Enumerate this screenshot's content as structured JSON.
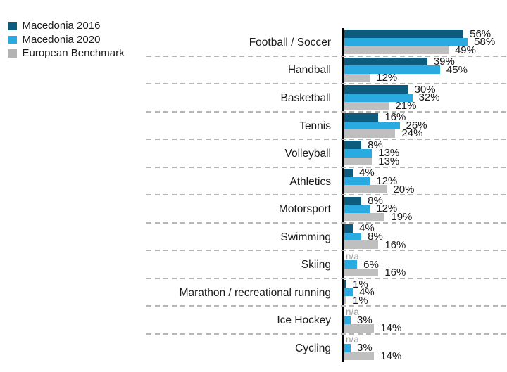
{
  "legend": {
    "items": [
      {
        "label": "Macedonia 2016",
        "color": "#0D5C7E"
      },
      {
        "label": "Macedonia 2020",
        "color": "#29ABE2"
      },
      {
        "label": "European Benchmark",
        "color": "#B3B3B3"
      }
    ]
  },
  "chart_data": {
    "type": "bar",
    "orientation": "horizontal",
    "title": "",
    "value_unit": "%",
    "xlim": [
      0,
      60
    ],
    "legend_position": "top-left",
    "data_labels": "outside-end",
    "gridlines": "dashed-row-separators",
    "null_label": "n/a",
    "categories": [
      "Football / Soccer",
      "Handball",
      "Basketball",
      "Tennis",
      "Volleyball",
      "Athletics",
      "Motorsport",
      "Swimming",
      "Skiing",
      "Marathon / recreational running",
      "Ice Hockey",
      "Cycling"
    ],
    "series": [
      {
        "name": "Macedonia 2016",
        "color": "#0D5C7E",
        "values": [
          56,
          39,
          30,
          16,
          8,
          4,
          8,
          4,
          null,
          1,
          null,
          null
        ]
      },
      {
        "name": "Macedonia 2020",
        "color": "#29ABE2",
        "values": [
          58,
          45,
          32,
          26,
          13,
          12,
          12,
          8,
          6,
          4,
          3,
          3
        ]
      },
      {
        "name": "European Benchmark",
        "color": "#BFBFBF",
        "values": [
          49,
          12,
          21,
          24,
          13,
          20,
          19,
          16,
          16,
          1,
          14,
          14
        ]
      }
    ]
  }
}
